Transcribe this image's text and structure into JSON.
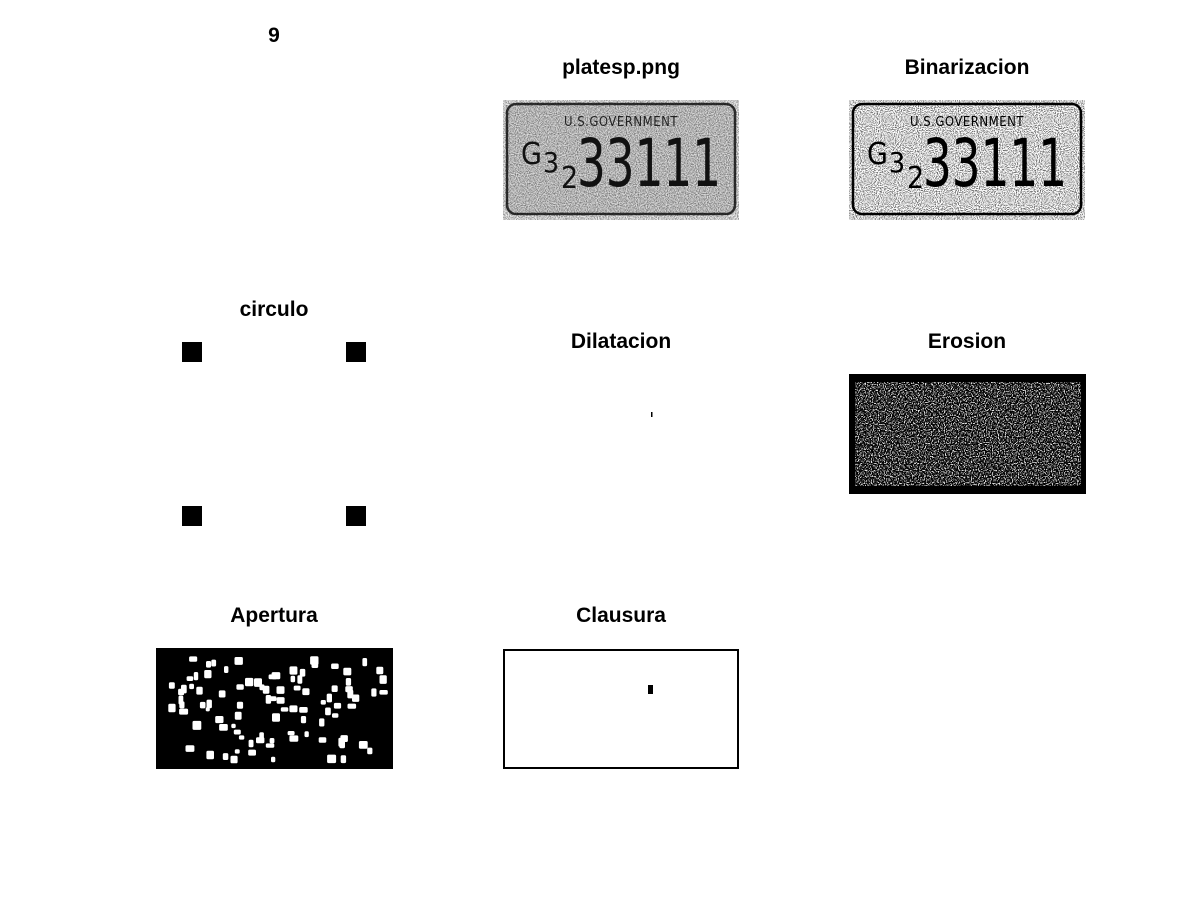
{
  "figure": {
    "number_label": "9",
    "panels": [
      {
        "id": "original",
        "title": "platesp.png",
        "plate": {
          "header": "U.S.GOVERNMENT",
          "prefix": "G",
          "sub1": "3",
          "sub2": "2",
          "number": "33111"
        }
      },
      {
        "id": "binarized",
        "title": "Binarizacion",
        "plate": {
          "header": "U.S.GOVERNMENT",
          "prefix": "G",
          "sub1": "3",
          "sub2": "2",
          "number": "33111"
        }
      },
      {
        "id": "circle",
        "title": "circulo"
      },
      {
        "id": "dilation",
        "title": "Dilatacion"
      },
      {
        "id": "erosion",
        "title": "Erosion"
      },
      {
        "id": "opening",
        "title": "Apertura"
      },
      {
        "id": "closing",
        "title": "Clausura"
      }
    ]
  }
}
